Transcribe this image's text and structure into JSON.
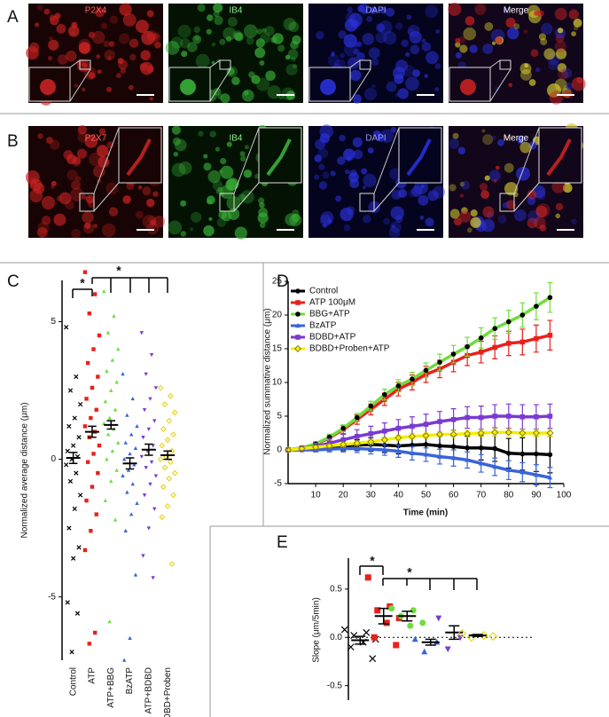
{
  "figure": {
    "panel_labels": [
      "A",
      "B",
      "C",
      "D",
      "E"
    ],
    "image_rows": [
      {
        "titles": [
          "P2X4",
          "IB4",
          "DAPI",
          "Merge"
        ]
      },
      {
        "titles": [
          "P2X7",
          "IB4",
          "DAPI",
          "Merge"
        ]
      }
    ]
  },
  "chart_data": [
    {
      "type": "strip",
      "y_label": "Normalized average distance (μm)",
      "categories": [
        "Control",
        "ATP",
        "ATP+BBG",
        "BzATP",
        "ATP+BDBD",
        "ATP+BDBD+Proben"
      ],
      "colors": [
        "#000000",
        "#e8201c",
        "#6fdc3c",
        "#3a64d8",
        "#7a3ad0",
        "#e6d000"
      ],
      "markers": [
        "x",
        "square",
        "triangle-up",
        "triangle-up",
        "triangle-down",
        "diamond"
      ],
      "values": [
        [
          4.8,
          3.0,
          2.5,
          2.0,
          1.5,
          1.2,
          0.8,
          0.5,
          0.3,
          0.1,
          0,
          -0.2,
          -0.5,
          -0.8,
          -1.3,
          -1.8,
          -2.5,
          -3.2,
          -3.6,
          -5.2,
          -5.6,
          -7.0
        ],
        [
          6.8,
          6.0,
          5.3,
          4.5,
          4.0,
          3.5,
          3.0,
          2.6,
          2.2,
          1.8,
          1.5,
          1.2,
          1.0,
          0.8,
          0.5,
          0.2,
          -0.1,
          -0.5,
          -1.0,
          -1.5,
          -2.0,
          -2.6,
          -3.3,
          -6.3,
          -6.7
        ],
        [
          6.1,
          5.2,
          4.6,
          4.0,
          3.6,
          3.2,
          2.8,
          2.5,
          2.1,
          1.8,
          1.5,
          1.3,
          1.1,
          0.9,
          0.6,
          0.3,
          0,
          -0.4,
          -0.8,
          -1.5,
          -2.2,
          -5.9
        ],
        [
          3.1,
          2.2,
          1.6,
          1.2,
          0.9,
          0.6,
          0.4,
          0.2,
          0,
          -0.2,
          -0.4,
          -0.6,
          -0.9,
          -1.2,
          -1.6,
          -2.0,
          -2.6,
          -4.2,
          -6.5,
          -7.3
        ],
        [
          4.6,
          3.8,
          3.1,
          2.6,
          2.2,
          1.8,
          1.4,
          1.1,
          0.8,
          0.5,
          0.3,
          0.1,
          -0.1,
          -0.3,
          -0.6,
          -0.9,
          -1.3,
          -1.8,
          -2.5,
          -3.5,
          -4.3
        ],
        [
          2.6,
          2.3,
          2.0,
          1.7,
          1.4,
          1.1,
          0.9,
          0.7,
          0.5,
          0.3,
          0.1,
          0,
          -0.1,
          -0.3,
          -0.5,
          -0.7,
          -1.0,
          -1.3,
          -1.7,
          -2.1,
          -3.8
        ]
      ],
      "means": [
        0.05,
        1.0,
        1.25,
        -0.15,
        0.35,
        0.15
      ],
      "sems": [
        0.2,
        0.2,
        0.15,
        0.2,
        0.2,
        0.15
      ],
      "ylim": [
        -7.3,
        6.5
      ],
      "yticks": [
        -5,
        0,
        5
      ],
      "annotations": [
        "*",
        "*"
      ]
    },
    {
      "type": "line",
      "x_label": "Time (min)",
      "y_label": "Normalized summative distance (μm)",
      "x": [
        0,
        5,
        10,
        15,
        20,
        25,
        30,
        35,
        40,
        45,
        50,
        55,
        60,
        65,
        70,
        75,
        80,
        85,
        90,
        95
      ],
      "xlim": [
        0,
        100
      ],
      "xticks": [
        10,
        20,
        30,
        40,
        50,
        60,
        70,
        80,
        90,
        100
      ],
      "ylim": [
        -5,
        25
      ],
      "yticks": [
        -5,
        0,
        5,
        10,
        15,
        20,
        25
      ],
      "grid": false,
      "legend": "upper-left",
      "series": [
        {
          "name": "Control",
          "color": "#000000",
          "marker": "circle",
          "values": [
            0,
            0,
            0.3,
            0.5,
            0.6,
            0.7,
            0.8,
            0.7,
            0.6,
            0.7,
            0.8,
            0.6,
            0.5,
            0.3,
            0.3,
            0.2,
            -0.5,
            -0.6,
            -0.6,
            -0.7
          ],
          "errors": [
            0,
            0.2,
            0.3,
            0.5,
            0.7,
            0.8,
            1,
            1.1,
            1.2,
            1.3,
            1.4,
            1.5,
            1.6,
            1.7,
            1.8,
            1.9,
            2.2,
            2.4,
            2.6,
            2.7
          ]
        },
        {
          "name": "ATP 100μM",
          "color": "#e8201c",
          "marker": "square",
          "values": [
            0,
            0.3,
            0.8,
            1.8,
            3,
            4.5,
            6,
            7.5,
            9,
            10,
            11.2,
            12,
            13,
            14,
            14.5,
            15.2,
            15.8,
            16,
            16.5,
            17
          ],
          "errors": [
            0,
            0.2,
            0.3,
            0.5,
            0.6,
            0.7,
            0.8,
            0.9,
            1.0,
            1.1,
            1.2,
            1.3,
            1.4,
            1.5,
            1.6,
            1.7,
            1.8,
            1.9,
            2.0,
            2.2
          ]
        },
        {
          "name": "BBG+ATP",
          "color": "#6fdc3c",
          "marker_color": "#000000",
          "marker": "circle",
          "values": [
            0,
            0.3,
            0.9,
            1.9,
            3.2,
            4.8,
            6.5,
            8.2,
            9.5,
            10.5,
            11.8,
            13,
            14.2,
            15.3,
            16.6,
            18,
            19,
            20,
            21.3,
            22.6
          ],
          "errors": [
            0,
            0.2,
            0.3,
            0.4,
            0.5,
            0.6,
            0.7,
            0.8,
            0.9,
            1.0,
            1.1,
            1.2,
            1.3,
            1.4,
            1.5,
            1.6,
            1.7,
            1.8,
            2.0,
            2.2
          ]
        },
        {
          "name": "BzATP",
          "color": "#3a64d8",
          "marker": "triangle-up",
          "values": [
            0,
            0,
            0,
            0.1,
            0.2,
            0.2,
            0.1,
            0,
            -0.2,
            -0.5,
            -0.7,
            -1,
            -1.2,
            -1.5,
            -2,
            -2.5,
            -3,
            -3.3,
            -3.7,
            -4.1
          ],
          "errors": [
            0,
            0.2,
            0.3,
            0.4,
            0.5,
            0.6,
            0.7,
            0.8,
            0.9,
            1.0,
            1.0,
            1.1,
            1.2,
            1.2,
            1.3,
            1.3,
            1.4,
            1.4,
            1.5,
            1.5
          ]
        },
        {
          "name": "BDBD+ATP",
          "color": "#7a3ad0",
          "marker": "square",
          "values": [
            0,
            0.2,
            0.5,
            1,
            1.5,
            2,
            2.4,
            2.8,
            3.2,
            3.5,
            3.8,
            4.2,
            4.5,
            4.8,
            4.8,
            5,
            5,
            4.9,
            4.9,
            5
          ],
          "errors": [
            0,
            0.3,
            0.5,
            0.7,
            0.8,
            1.0,
            1.1,
            1.2,
            1.3,
            1.4,
            1.5,
            1.5,
            1.6,
            1.6,
            1.7,
            1.7,
            1.8,
            1.8,
            1.8,
            1.8
          ]
        },
        {
          "name": "BDBD+Proben+ATP",
          "color": "#f4ef00",
          "marker_color": "#8a8000",
          "marker": "diamond",
          "values": [
            0,
            0.2,
            0.4,
            0.6,
            0.8,
            1,
            1.2,
            1.5,
            1.8,
            2,
            2.1,
            2.3,
            2.3,
            2.4,
            2.5,
            2.6,
            2.6,
            2.5,
            2.5,
            2.5
          ],
          "errors": [
            0,
            0.1,
            0.2,
            0.2,
            0.3,
            0.3,
            0.3,
            0.3,
            0.4,
            0.4,
            0.4,
            0.4,
            0.5,
            0.5,
            0.5,
            0.5,
            0.5,
            0.5,
            0.5,
            0.5
          ]
        }
      ]
    },
    {
      "type": "strip",
      "y_label": "Slope (μm/5min)",
      "colors": [
        "#000000",
        "#e8201c",
        "#6fdc3c",
        "#3a64d8",
        "#7a3ad0",
        "#e6d000"
      ],
      "markers": [
        "x",
        "square",
        "circle",
        "triangle-up",
        "triangle-down",
        "diamond"
      ],
      "values": [
        [
          0.08,
          0.05,
          0.02,
          -0.02,
          -0.05,
          -0.1,
          -0.22
        ],
        [
          0.62,
          0.32,
          0.28,
          0.2,
          0.15,
          0.0,
          -0.08
        ],
        [
          0.3,
          0.28,
          0.22,
          0.15,
          0.12
        ],
        [
          -0.02,
          -0.05,
          -0.15
        ],
        [
          0.2,
          0.0,
          -0.12
        ],
        [
          0.04,
          0.02,
          0.0,
          0.01
        ]
      ],
      "means": [
        -0.03,
        0.22,
        0.22,
        -0.05,
        0.05,
        0.02
      ],
      "sems": [
        0.04,
        0.08,
        0.05,
        0.03,
        0.07,
        0.01
      ],
      "ylim": [
        -0.65,
        0.82
      ],
      "yticks": [
        -0.5,
        {
          "value": 0,
          "label": "0.0"
        },
        0.5
      ],
      "zero_line": true,
      "annotations": [
        "*",
        "*"
      ]
    }
  ]
}
